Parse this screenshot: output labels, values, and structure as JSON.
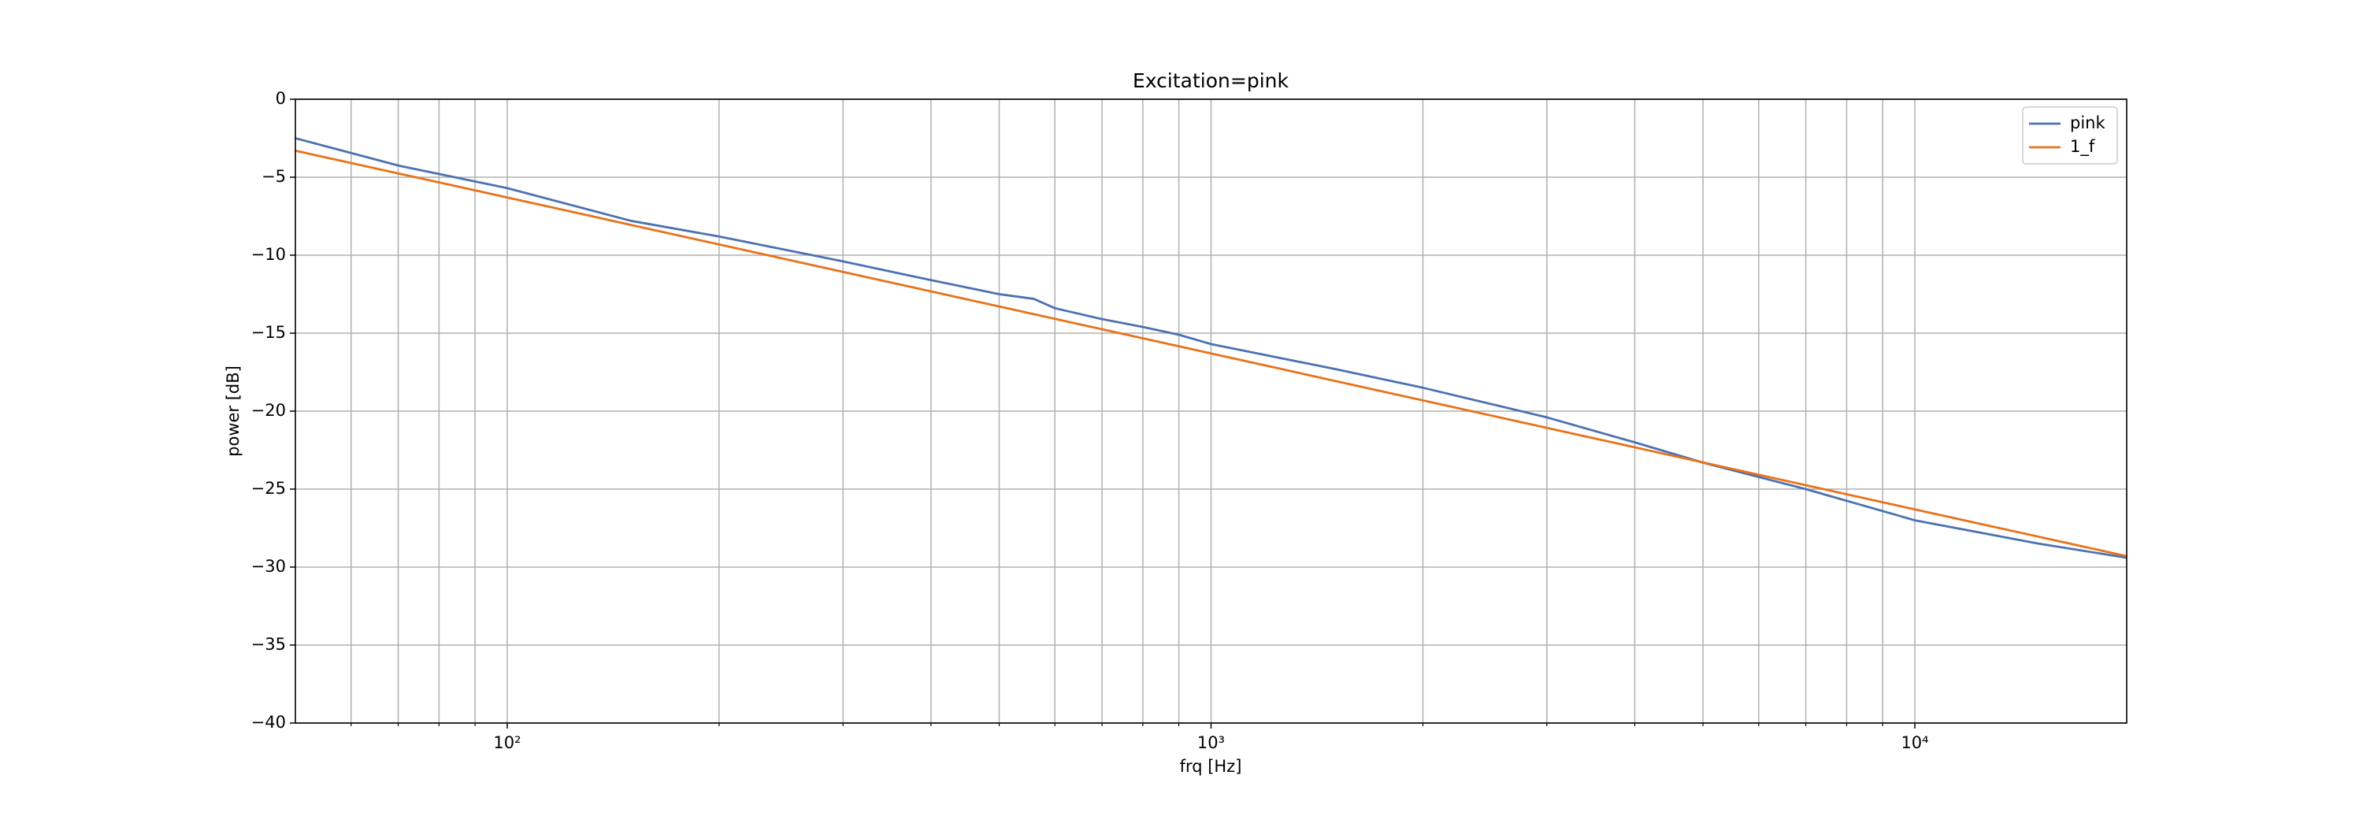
{
  "chart_data": {
    "type": "line",
    "title": "Excitation=pink",
    "xlabel": "frq [Hz]",
    "ylabel": "power [dB]",
    "xscale": "log",
    "xlim": [
      50,
      20000
    ],
    "xticks": [
      {
        "value": 100,
        "label": "10²"
      },
      {
        "value": 1000,
        "label": "10³"
      },
      {
        "value": 10000,
        "label": "10⁴"
      }
    ],
    "xminorticks": [
      60,
      70,
      80,
      90,
      200,
      300,
      400,
      500,
      600,
      700,
      800,
      900,
      2000,
      3000,
      4000,
      5000,
      6000,
      7000,
      8000,
      9000
    ],
    "ylim": [
      -40,
      0
    ],
    "yticks": [
      {
        "value": -40,
        "label": "−40"
      },
      {
        "value": -35,
        "label": "−35"
      },
      {
        "value": -30,
        "label": "−30"
      },
      {
        "value": -25,
        "label": "−25"
      },
      {
        "value": -20,
        "label": "−20"
      },
      {
        "value": -15,
        "label": "−15"
      },
      {
        "value": -10,
        "label": "−10"
      },
      {
        "value": -5,
        "label": "−5"
      },
      0
    ],
    "grid": true,
    "legend": "upper right",
    "series": [
      {
        "name": "pink",
        "color": "#4c72b0",
        "x": [
          50,
          70,
          100,
          150,
          200,
          300,
          400,
          500,
          560,
          600,
          700,
          800,
          900,
          1000,
          1500,
          2000,
          3000,
          4000,
          5000,
          7000,
          10000,
          15000,
          20000
        ],
        "values": [
          -2.5,
          -4.25,
          -5.7,
          -7.8,
          -8.8,
          -10.4,
          -11.6,
          -12.5,
          -12.8,
          -13.4,
          -14.1,
          -14.6,
          -15.1,
          -15.7,
          -17.3,
          -18.5,
          -20.4,
          -22.0,
          -23.3,
          -25.0,
          -27.0,
          -28.5,
          -29.4
        ]
      },
      {
        "name": "1_f",
        "color": "#e8731b",
        "x": [
          50,
          100,
          1000,
          10000,
          20000
        ],
        "values": [
          -3.3,
          -6.3,
          -16.3,
          -26.3,
          -29.3
        ]
      }
    ]
  }
}
